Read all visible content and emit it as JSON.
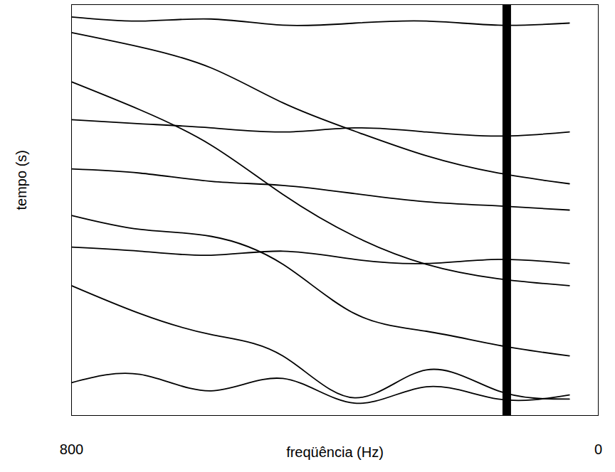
{
  "chart_data": {
    "type": "line",
    "xlabel": "freqüência (Hz)",
    "ylabel": "tempo (s)",
    "x": [
      800,
      696,
      588,
      479,
      370,
      261,
      152,
      44
    ],
    "xlim": [
      800,
      0
    ],
    "xticks": [
      800,
      0
    ],
    "ylim": [
      0,
      10
    ],
    "tick_labels": "x",
    "dark_band_x": 139,
    "series": [
      {
        "color": "#000000",
        "values": [
          0.68,
          1.03,
          1.54,
          2.39,
          3.08,
          3.68,
          4.1,
          4.36
        ]
      },
      {
        "color": "#000000",
        "values": [
          1.88,
          2.56,
          3.42,
          4.62,
          5.64,
          6.32,
          6.67,
          6.84
        ]
      },
      {
        "color": "#000000",
        "values": [
          5.13,
          5.47,
          5.64,
          6.32,
          7.52,
          7.95,
          8.29,
          8.55
        ]
      },
      {
        "color": "#000000",
        "values": [
          6.84,
          7.52,
          8.03,
          8.55,
          9.57,
          8.89,
          9.4,
          9.6
        ]
      },
      {
        "color": "#000000",
        "values": [
          0.3,
          0.4,
          0.35,
          0.5,
          0.45,
          0.4,
          0.5,
          0.45
        ]
      },
      {
        "color": "#000000",
        "values": [
          2.8,
          2.9,
          3.0,
          3.1,
          3.0,
          3.1,
          3.2,
          3.1
        ]
      },
      {
        "color": "#000000",
        "values": [
          4.0,
          4.1,
          4.3,
          4.4,
          4.6,
          4.8,
          4.9,
          5.0
        ]
      },
      {
        "color": "#000000",
        "values": [
          5.9,
          6.0,
          6.1,
          6.0,
          6.2,
          6.3,
          6.2,
          6.3
        ]
      },
      {
        "color": "#000000",
        "values": [
          9.2,
          9.0,
          9.4,
          9.1,
          9.7,
          9.3,
          9.6,
          9.5
        ]
      }
    ]
  }
}
